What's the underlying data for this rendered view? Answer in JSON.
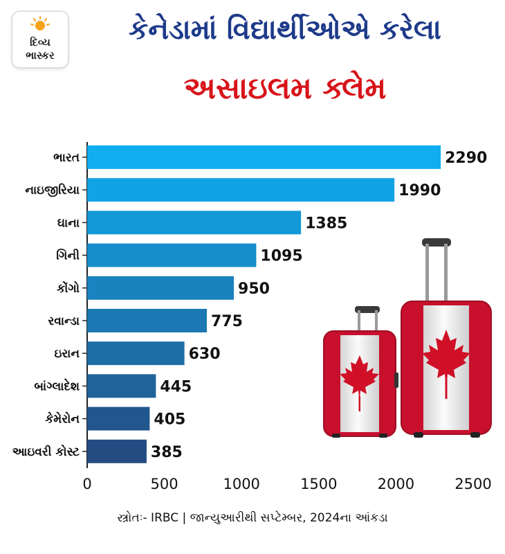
{
  "logo": {
    "line1": "દિવ્ય",
    "line2": "ભાસ્કર"
  },
  "header": {
    "title_line1": "કેનેડામાં વિદ્યાર્થીઓએ કરેલા",
    "title_line2": "અસાઇલમ ક્લેમ"
  },
  "chart_data": {
    "type": "bar",
    "orientation": "horizontal",
    "categories": [
      "ભારત",
      "નાઇજીરિયા",
      "ઘાના",
      "ગિની",
      "કોંગો",
      "રવાન્ડા",
      "ઇરાન",
      "બાંગ્લાદેશ",
      "કેમેરોન",
      "આઇવરી કોસ્ટ"
    ],
    "values": [
      2290,
      1990,
      1385,
      1095,
      950,
      775,
      630,
      445,
      405,
      385
    ],
    "value_labels": [
      "2290",
      "1990",
      "1385",
      "1095",
      "950",
      "775",
      "630",
      "445",
      "405",
      "385"
    ],
    "xlim": [
      0,
      2500
    ],
    "ticks": [
      "0",
      "500",
      "1000",
      "1500",
      "2000",
      "2500"
    ],
    "tick_values": [
      0,
      500,
      1000,
      1500,
      2000,
      2500
    ],
    "grid": false,
    "colors": {
      "bar_top": "#10aef0",
      "bar_bottom": "#244c82"
    }
  },
  "footer": {
    "source": "સ્ત્રોતઃ- IRBC | જાન્યુઆરીથી સપ્ટેમ્બર, 2024ના આંકડા"
  },
  "illustration": {
    "icon": "canada-flag-suitcases-icon"
  }
}
